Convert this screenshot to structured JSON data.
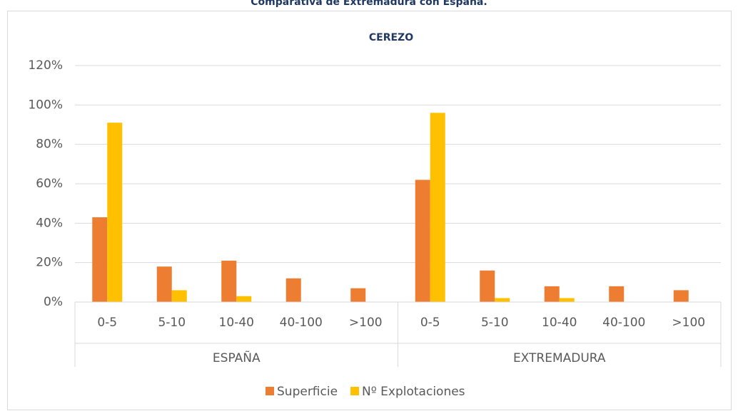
{
  "chart_data": {
    "type": "bar",
    "page_title": "Comparativa de Extremadura con España.",
    "title": "CEREZO",
    "groups": [
      {
        "name": "ESPAÑA",
        "categories": [
          "0-5",
          "5-10",
          "10-40",
          "40-100",
          ">100"
        ]
      },
      {
        "name": "EXTREMADURA",
        "categories": [
          "0-5",
          "5-10",
          "10-40",
          "40-100",
          ">100"
        ]
      }
    ],
    "series": [
      {
        "name": "Superficie",
        "color": "#ed7d31",
        "values": [
          43,
          18,
          21,
          12,
          7,
          62,
          16,
          8,
          8,
          6
        ]
      },
      {
        "name": "Nº Explotaciones",
        "color": "#ffc000",
        "values": [
          91,
          6,
          3,
          0,
          0,
          96,
          2,
          2,
          0,
          0
        ]
      }
    ],
    "ylim": [
      0,
      120
    ],
    "yticks": [
      {
        "value": 0,
        "label": "0%"
      },
      {
        "value": 20,
        "label": "20%"
      },
      {
        "value": 40,
        "label": "40%"
      },
      {
        "value": 60,
        "label": "60%"
      },
      {
        "value": 80,
        "label": "80%"
      },
      {
        "value": 100,
        "label": "100%"
      },
      {
        "value": 120,
        "label": "120%"
      }
    ],
    "grid": true,
    "legend": "bottom"
  }
}
